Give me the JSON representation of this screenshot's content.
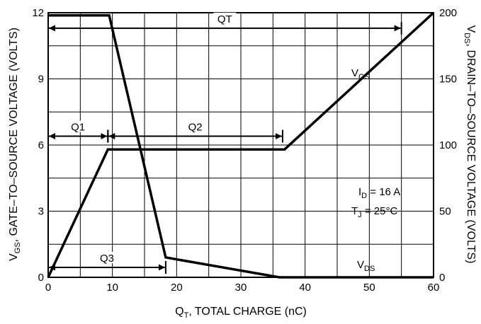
{
  "chart_data": {
    "type": "line",
    "title": "",
    "grid": true,
    "x_axis": {
      "label_main": "Q",
      "label_sub": "T",
      "label_rest": ", TOTAL CHARGE (nC)",
      "range": [
        0,
        60
      ],
      "ticks": [
        0,
        10,
        20,
        30,
        40,
        50,
        60
      ],
      "tick_labels": [
        "0",
        "10",
        "20",
        "30",
        "40",
        "50",
        "60"
      ]
    },
    "y_axis_left": {
      "label_main": "V",
      "label_sub": "GS",
      "label_rest": ", GATE–TO–SOURCE VOLTAGE (VOLTS)",
      "range": [
        0,
        12
      ],
      "ticks": [
        0,
        3,
        6,
        9,
        12
      ],
      "tick_labels": [
        "0",
        "3",
        "6",
        "9",
        "12"
      ]
    },
    "y_axis_right": {
      "label_main": "V",
      "label_sub": "DS",
      "label_rest": ", DRAIN–TO–SOURCE VOLTAGE (VOLTS)",
      "range": [
        0,
        200
      ],
      "ticks": [
        0,
        50,
        100,
        150,
        200
      ],
      "tick_labels": [
        "0",
        "50",
        "100",
        "150",
        "200"
      ]
    },
    "series": [
      {
        "label_main": "V",
        "label_sub": "GS",
        "axis": "left",
        "points": [
          [
            0,
            0
          ],
          [
            9.3,
            5.8
          ],
          [
            36.8,
            5.8
          ],
          [
            60,
            12
          ]
        ]
      },
      {
        "label_main": "V",
        "label_sub": "DS",
        "axis": "right",
        "points": [
          [
            0,
            198
          ],
          [
            9.5,
            198
          ],
          [
            18.3,
            15
          ],
          [
            36,
            0
          ],
          [
            60,
            0
          ]
        ]
      }
    ],
    "annotations": {
      "qt": {
        "label": "QT",
        "from": 0,
        "to": 55,
        "y": 11.3
      },
      "q1": {
        "label": "Q1",
        "from": 0,
        "to": 9.3,
        "y": 6.4
      },
      "q2": {
        "label": "Q2",
        "from": 9.3,
        "to": 36.5,
        "y": 6.4
      },
      "q3": {
        "label": "Q3",
        "from": 0,
        "to": 18.3,
        "y": 0.45
      },
      "id_main": "I",
      "id_sub": "D",
      "id_rest": " = 16 A",
      "tj_main": "T",
      "tj_sub": "J",
      "tj_rest": " = 25°C"
    }
  }
}
